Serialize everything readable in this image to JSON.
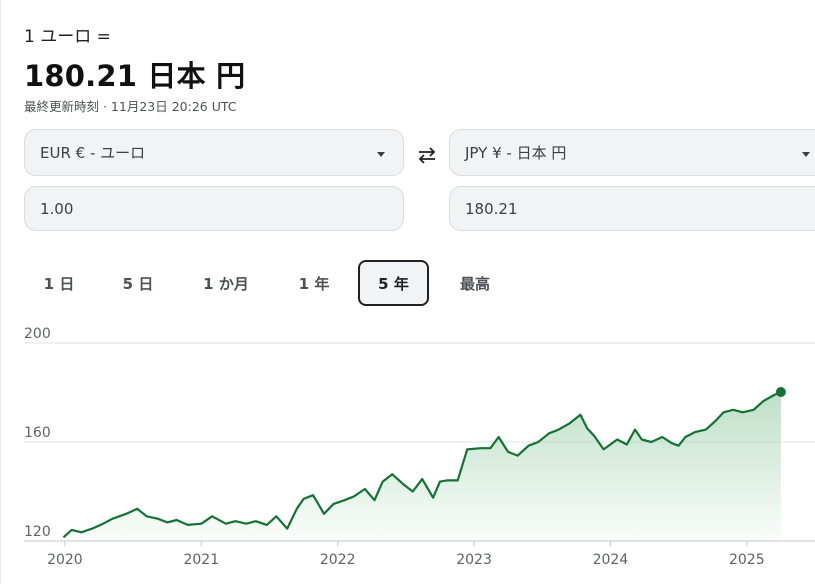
{
  "header": {
    "rate_label": "1 ユーロ =",
    "rate_value": "180.21 日本 円",
    "updated": "最終更新時刻 · 11月23日 20:26 UTC"
  },
  "converter": {
    "from_currency": "EUR € - ユーロ",
    "to_currency": "JPY ¥ - 日本 円",
    "from_amount": "1.00",
    "to_amount": "180.21"
  },
  "tabs": [
    {
      "label": "1 日",
      "active": false
    },
    {
      "label": "5 日",
      "active": false
    },
    {
      "label": "1 か月",
      "active": false
    },
    {
      "label": "1 年",
      "active": false
    },
    {
      "label": "5 年",
      "active": true
    },
    {
      "label": "最高",
      "active": false
    }
  ],
  "colors": {
    "line": "#137333",
    "fill_top": "#a8d5b5",
    "grid": "#dadce0",
    "active_tab_border": "#202124"
  },
  "chart_data": {
    "type": "area",
    "title": "",
    "xlabel": "",
    "ylabel": "",
    "ylim": [
      120,
      200
    ],
    "xlim": [
      2019.7,
      2025.5
    ],
    "yticks": [
      120,
      160,
      200
    ],
    "xticks": [
      "2020",
      "2021",
      "2022",
      "2023",
      "2024",
      "2025"
    ],
    "grid": true,
    "series": [
      {
        "x": [
          2019.99,
          2020.05,
          2020.12,
          2020.2,
          2020.28,
          2020.35,
          2020.45,
          2020.53,
          2020.6,
          2020.68,
          2020.75,
          2020.82,
          2020.9,
          2021.0,
          2021.08,
          2021.18,
          2021.25,
          2021.33,
          2021.4,
          2021.48,
          2021.55,
          2021.63,
          2021.7,
          2021.75,
          2021.82,
          2021.9,
          2021.97,
          2022.05,
          2022.12,
          2022.2,
          2022.27,
          2022.33,
          2022.4,
          2022.48,
          2022.55,
          2022.62,
          2022.7,
          2022.75,
          2022.8,
          2022.88,
          2022.95,
          2023.05,
          2023.12,
          2023.18,
          2023.25,
          2023.32,
          2023.4,
          2023.47,
          2023.55,
          2023.62,
          2023.7,
          2023.78,
          2023.83,
          2023.88,
          2023.95,
          2024.05,
          2024.12,
          2024.18,
          2024.23,
          2024.3,
          2024.38,
          2024.45,
          2024.5,
          2024.55,
          2024.62,
          2024.7,
          2024.77,
          2024.83,
          2024.9,
          2024.97,
          2025.05,
          2025.12,
          2025.2,
          2025.25
        ],
        "y": [
          121.5,
          124.5,
          123.5,
          125,
          127,
          129,
          131,
          133,
          130,
          129,
          127.5,
          128.5,
          126.5,
          127,
          130,
          127,
          128,
          127,
          128,
          126.5,
          130,
          125,
          133,
          137,
          138.5,
          131,
          135,
          136.5,
          138,
          141,
          136.5,
          144,
          147,
          143,
          140,
          145,
          137.5,
          144,
          144.5,
          144.5,
          157,
          157.5,
          157.5,
          162,
          156,
          154.5,
          158.5,
          160,
          163.5,
          165,
          167.5,
          171,
          165.5,
          162.5,
          157,
          161,
          159,
          165,
          161,
          160,
          162,
          159.5,
          158.5,
          162,
          164,
          165,
          168.5,
          172,
          173,
          172,
          173,
          176.5,
          179,
          180.21
        ]
      }
    ],
    "last_point": {
      "x": 2025.25,
      "y": 180.21
    }
  }
}
